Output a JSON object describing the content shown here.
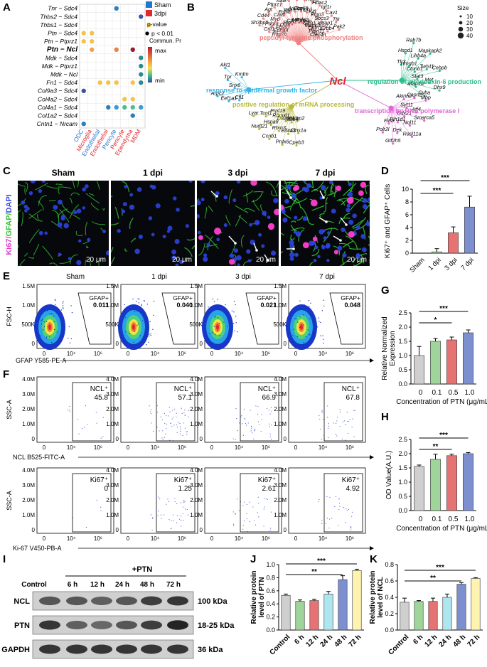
{
  "panels": {
    "A": "A",
    "B": "B",
    "C": "C",
    "D": "D",
    "E": "E",
    "F": "F",
    "G": "G",
    "H": "H",
    "I": "I",
    "J": "J",
    "K": "K"
  },
  "panelA": {
    "rows": [
      "Tnr − Sdc4",
      "Thbs2 − Sdc4",
      "Thbs1 − Sdc4",
      "Ptn − Sdc4",
      "Ptn − Ptprz1",
      "Ptn − Ncl",
      "Mdk − Sdc4",
      "Mdk − Ptprz1",
      "Mdk − Ncl",
      "Fn1 − Sdc4",
      "Col9a3 − Sdc4",
      "Col4a2 − Sdc4",
      "Col4a1 − Sdc4",
      "Col1a2 − Sdc4",
      "Cntn1 − Nrcam"
    ],
    "cols": [
      "ODC",
      "Microglia",
      "Endothelial",
      "Endothelial",
      "Pericyte",
      "Pericyte",
      "Ependyma",
      "MDM"
    ],
    "legend": {
      "sham": "Sham",
      "dpi3": "3dpi",
      "pvalue_title": "p-value",
      "pvalue": "p < 0.01",
      "prob_title": "Commun. Prob.",
      "max": "max",
      "min": "min"
    },
    "colors": {
      "sham": "#1f77d4",
      "dpi3": "#e0282e"
    }
  },
  "panelB": {
    "center": "Ncl",
    "size_title": "Size",
    "sizes": [
      "10",
      "20",
      "30",
      "40"
    ],
    "groups": [
      {
        "name": "peptidyl-tyrosine phosphorylation",
        "color": "#f08080"
      },
      {
        "name": "regulation of interleukin-6 production",
        "color": "#2bbf8a"
      },
      {
        "name": "response to epidermal growth factor",
        "color": "#36b3e6"
      },
      {
        "name": "positive regulation of mRNA processing",
        "color": "#b8b83a"
      },
      {
        "name": "transcription by RNA polymerase I",
        "color": "#e066d6"
      }
    ],
    "genes": {
      "top": [
        "Rap2b",
        "Crlf1",
        "Sh3bp5",
        "Epha4",
        "Pdgfa",
        "Cd44",
        "Fbxo7",
        "Mvp",
        "Agt",
        "Ddr1",
        "Cav2",
        "Ptprz1",
        "Ptprj",
        "Fgfr3",
        "Aatk",
        "Clk1",
        "Itga5",
        "Ptpn1",
        "Mif",
        "Arl2bp",
        "Cd81",
        "Vegfa",
        "Gpr55",
        "Chmp6",
        "Pdcl3",
        "Itgb1",
        "Rap1",
        "Prnp",
        "Kitl",
        "Hdac2",
        "Gfra1",
        "Plpp3",
        "Igf1r",
        "Mapk3",
        "Socs3",
        "Cav1",
        "Cntn1",
        "Iqgap1",
        "Ttk",
        "Ptpn11",
        "Erbb4",
        "Pak2",
        "Clec4n"
      ],
      "right": [
        "Tlr3",
        "Hspd1",
        "Rab7b",
        "Hmgb1",
        "Lilrb4a",
        "Mapkapk2",
        "Ctnnb1",
        "Twist1",
        "Cebpb",
        "Stat3",
        "Met",
        "Dhx9",
        "Afap1l2",
        "Cyba",
        "Akirin2",
        "Capn2",
        "Mbp",
        "Syt11",
        "Atf4",
        "Smarca5",
        "Ddx21",
        "Nol11",
        "Rasl11a",
        "Pih1d1",
        "Dek",
        "Gtf2h5",
        "Fina",
        "Polr2l"
      ],
      "left": [
        "Cfl1",
        "Eef1a1",
        "Arpc2",
        "Snx6",
        "Tpr",
        "Akt1",
        "Kmtm",
        "Ncbp2",
        "Clns1a",
        "Cpeb3",
        "Sf3b4",
        "Eif4a3",
        "Prdx6",
        "Dazap1",
        "Rbm3",
        "Ccnb1",
        "Rbmxl1",
        "Hspa8",
        "Nudt21",
        "Prpf19",
        "Tcof1",
        "Lyar"
      ]
    }
  },
  "panelC": {
    "ylabel_ki67": "Ki67/",
    "ylabel_gfap": "GFAP/",
    "ylabel_dapi": "DAPI",
    "titles": [
      "Sham",
      "1 dpi",
      "3 dpi",
      "7 dpi"
    ],
    "scalebar": "20 μm"
  },
  "panelD": {
    "ylabel": "Ki67⁺ and GFAP⁺ Cells",
    "stars": [
      "***",
      "***"
    ],
    "chart_data": {
      "type": "bar",
      "categories": [
        "Sham",
        "1 dpi",
        "3 dpi",
        "7 dpi"
      ],
      "values": [
        0,
        0.2,
        3.2,
        7.2
      ],
      "errors": [
        0,
        0.5,
        0.9,
        1.7
      ],
      "colors": [
        "#cfcfcf",
        "#9fd49a",
        "#e57373",
        "#7e8fd0"
      ],
      "ylim": [
        0,
        10
      ],
      "yticks": [
        "0",
        "2",
        "4",
        "6",
        "8",
        "10"
      ]
    }
  },
  "panelE": {
    "titles": [
      "Sham",
      "1 dpi",
      "3 dpi",
      "7 dpi"
    ],
    "gate_label": "GFAP+",
    "values": [
      "0.011",
      "0.040",
      "0.021",
      "0.048"
    ],
    "ylabel": "FSC-H",
    "xlabel": "GFAP Y585-PE-A",
    "yticks": [
      "0",
      "500K",
      "1.0M",
      "1.5M"
    ],
    "xticks": [
      "0",
      "10⁴",
      "10⁶"
    ]
  },
  "panelF": {
    "ncl_label": "NCL⁺",
    "ncl_values": [
      "45.8",
      "57.1",
      "66.9",
      "67.8"
    ],
    "ki67_label": "Ki67⁺",
    "ki67_values": [
      "0",
      "1.25",
      "2.61",
      "4.92"
    ],
    "ylabel": "SSC-A",
    "xlabel_ncl": "NCL B525-FITC-A",
    "xlabel_ki67": "Ki-67 V450-PB-A",
    "yticks": [
      "0",
      "1.0M",
      "2.0M",
      "3.0M",
      "4.0M"
    ],
    "xticks": [
      "0",
      "10⁴",
      "10⁶"
    ]
  },
  "panelG": {
    "ylabel": "Relative Normalized Expression",
    "xlabel": "Concentration of PTN (μg/mL)",
    "stars": [
      "***",
      "*"
    ],
    "chart_data": {
      "type": "bar",
      "categories": [
        "0",
        "0.1",
        "0.5",
        "1.0"
      ],
      "values": [
        1.0,
        1.5,
        1.55,
        1.8
      ],
      "errors": [
        0.32,
        0.1,
        0.1,
        0.1
      ],
      "colors": [
        "#cfcfcf",
        "#9fd49a",
        "#e57373",
        "#7e8fd0"
      ],
      "ylim": [
        0,
        2.5
      ],
      "yticks": [
        "0.0",
        "0.5",
        "1.0",
        "1.5",
        "2.0",
        "2.5"
      ]
    }
  },
  "panelH": {
    "ylabel": "OD Value(A.U.)",
    "xlabel": "Concentration of PTN (μg/mL)",
    "stars": [
      "***",
      "**"
    ],
    "chart_data": {
      "type": "bar",
      "categories": [
        "0",
        "0.1",
        "0.5",
        "1.0"
      ],
      "values": [
        1.55,
        1.8,
        1.93,
        2.0
      ],
      "errors": [
        0.05,
        0.18,
        0.05,
        0.04
      ],
      "colors": [
        "#cfcfcf",
        "#9fd49a",
        "#e57373",
        "#7e8fd0"
      ],
      "ylim": [
        0,
        2.5
      ],
      "yticks": [
        "0.0",
        "0.5",
        "1.0",
        "1.5",
        "2.0",
        "2.5"
      ]
    }
  },
  "panelI": {
    "group": "+PTN",
    "lanes": [
      "Control",
      "6 h",
      "12 h",
      "24 h",
      "48 h",
      "72 h"
    ],
    "proteins": [
      "NCL",
      "PTN",
      "GAPDH"
    ],
    "sizes": [
      "100 kDa",
      "18-25 kDa",
      "36 kDa"
    ]
  },
  "panelJ": {
    "ylabel": "Relative protein level of PTN",
    "stars": [
      "***",
      "**"
    ],
    "chart_data": {
      "type": "bar",
      "categories": [
        "Control",
        "6 h",
        "12 h",
        "24 h",
        "48 h",
        "72 h"
      ],
      "values": [
        0.53,
        0.44,
        0.45,
        0.55,
        0.77,
        0.91
      ],
      "errors": [
        0.02,
        0.02,
        0.02,
        0.04,
        0.06,
        0.02
      ],
      "colors": [
        "#cfcfcf",
        "#9fd49a",
        "#e57373",
        "#aee6f0",
        "#7e8fd0",
        "#fff3b0"
      ],
      "ylim": [
        0,
        1.0
      ],
      "yticks": [
        "0.0",
        "0.2",
        "0.4",
        "0.6",
        "0.8",
        "1.0"
      ]
    }
  },
  "panelK": {
    "ylabel": "Relative protein level of NCL",
    "stars": [
      "***",
      "**"
    ],
    "chart_data": {
      "type": "bar",
      "categories": [
        "Control",
        "6 h",
        "12 h",
        "24 h",
        "48 h",
        "72 h"
      ],
      "values": [
        0.34,
        0.35,
        0.35,
        0.4,
        0.56,
        0.63
      ],
      "errors": [
        0.05,
        0.01,
        0.04,
        0.04,
        0.02,
        0.01
      ],
      "colors": [
        "#cfcfcf",
        "#9fd49a",
        "#e57373",
        "#aee6f0",
        "#7e8fd0",
        "#fff3b0"
      ],
      "ylim": [
        0,
        0.8
      ],
      "yticks": [
        "0.0",
        "0.2",
        "0.4",
        "0.6",
        "0.8"
      ]
    }
  }
}
